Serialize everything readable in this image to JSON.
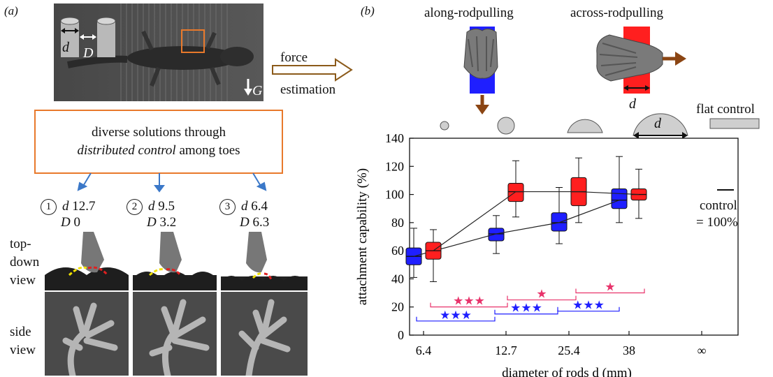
{
  "panel_a": {
    "letter": "(a)",
    "photo_labels": {
      "d": "d",
      "D": "D",
      "G": "G"
    },
    "arrow_label_1": "force",
    "arrow_label_2": "estimation",
    "box_line1": "diverse solutions through",
    "box_line2_italic": "distributed control",
    "box_line2_rest": " among toes",
    "configs": [
      {
        "num": "1",
        "d_label": "d",
        "d_value": "12.7",
        "D_label": "D",
        "D_value": "0"
      },
      {
        "num": "2",
        "d_label": "d",
        "d_value": "9.5",
        "D_label": "D",
        "D_value": "3.2"
      },
      {
        "num": "3",
        "d_label": "d",
        "d_value": "6.4",
        "D_label": "D",
        "D_value": "6.3"
      }
    ],
    "view_top_1": "top-",
    "view_top_2": "down",
    "view_top_3": "view",
    "view_side_1": "side",
    "view_side_2": "view"
  },
  "panel_b": {
    "letter": "(b)",
    "along_label": "along-rodpulling",
    "across_label": "across-rodpulling",
    "across_d": "d",
    "flat_label": "flat control",
    "rod_d": "d",
    "control_line1": "control",
    "control_line2": "= 100%"
  },
  "chart_data": {
    "type": "box",
    "xlabel": "diameter of rods d (mm)",
    "ylabel": "attachment capability (%)",
    "categories": [
      "6.4",
      "12.7",
      "25.4",
      "38",
      "∞"
    ],
    "ylim": [
      0,
      140
    ],
    "yticks": [
      0,
      20,
      40,
      60,
      80,
      100,
      120,
      140
    ],
    "series": [
      {
        "color": "#1f1fff",
        "boxes": [
          {
            "category": "6.4",
            "min": 41,
            "q1": 50,
            "median": 56,
            "q3": 62,
            "max": 76
          },
          {
            "category": "12.7",
            "min": 58,
            "q1": 67,
            "median": 72,
            "q3": 76,
            "max": 85
          },
          {
            "category": "25.4",
            "min": 65,
            "q1": 74,
            "median": 80,
            "q3": 87,
            "max": 105
          },
          {
            "category": "38",
            "min": 80,
            "q1": 90,
            "median": 96,
            "q3": 104,
            "max": 127
          }
        ]
      },
      {
        "color": "#ff1f1f",
        "boxes": [
          {
            "category": "6.4",
            "min": 38,
            "q1": 54,
            "median": 60,
            "q3": 66,
            "max": 75
          },
          {
            "category": "12.7",
            "min": 84,
            "q1": 95,
            "median": 102,
            "q3": 108,
            "max": 124
          },
          {
            "category": "25.4",
            "min": 80,
            "q1": 92,
            "median": 102,
            "q3": 112,
            "max": 126
          },
          {
            "category": "38",
            "min": 83,
            "q1": 96,
            "median": 100,
            "q3": 104,
            "max": 118
          }
        ]
      }
    ],
    "significance": [
      {
        "color": "#e8336b",
        "label": "★★★",
        "y": 24
      },
      {
        "color": "#e8336b",
        "label": "★",
        "y": 29
      },
      {
        "color": "#e8336b",
        "label": "★",
        "y": 34
      },
      {
        "color": "#1f1fff",
        "label": "★★★",
        "y": 14
      },
      {
        "color": "#1f1fff",
        "label": "★★★",
        "y": 19
      },
      {
        "color": "#1f1fff",
        "label": "★★★",
        "y": 21
      }
    ]
  }
}
